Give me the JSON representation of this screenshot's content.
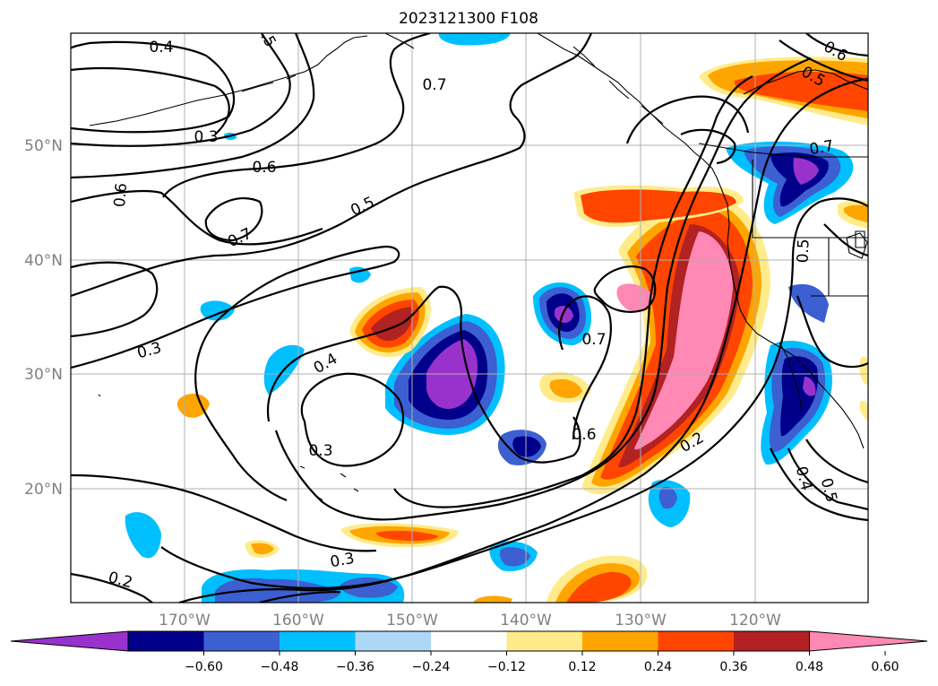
{
  "title": "2023121300 F108",
  "map": {
    "lon_ticks": [
      "170°W",
      "160°W",
      "150°W",
      "140°W",
      "130°W",
      "120°W"
    ],
    "lat_ticks": [
      "50°N",
      "40°N",
      "30°N",
      "20°N"
    ],
    "contour_labels": [
      "0.4",
      "0.3",
      "0.6",
      "0.6",
      "0.7",
      "0.5",
      "0.7",
      "0.3",
      "0.4",
      "0.3",
      "0.2",
      "0.3",
      "0.6",
      "0.7",
      "0.2",
      "0.6",
      "0.5",
      "0.7",
      "0.5",
      "0.4",
      "0.5",
      "0.5"
    ],
    "colors": {
      "neg": [
        "#9932cc",
        "#00008b",
        "#3c5fd2",
        "#00bfff",
        "#add8f5"
      ],
      "pos": [
        "#ffeb8a",
        "#ffa500",
        "#ff4500",
        "#b22222",
        "#ff88b4"
      ],
      "contour": "#000000"
    }
  },
  "colorbar": {
    "ticks": [
      "−0.60",
      "−0.48",
      "−0.36",
      "−0.24",
      "−0.12",
      "0.12",
      "0.24",
      "0.36",
      "0.48",
      "0.60"
    ],
    "colors": [
      "#9932cc",
      "#00008b",
      "#3c5fd2",
      "#00bfff",
      "#add8f5",
      "#ffffff",
      "#ffeb8a",
      "#ffa500",
      "#ff4500",
      "#b22222",
      "#ff88b4"
    ],
    "extend": "both"
  }
}
